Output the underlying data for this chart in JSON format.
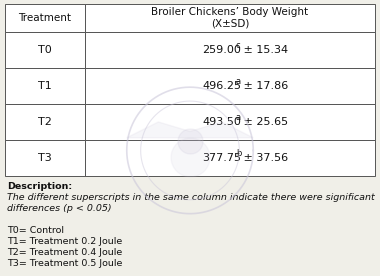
{
  "title_col1": "Treatment",
  "title_col2_line1": "Broiler Chickens’ Body Weight",
  "title_col2_line2": "(X±SD)",
  "rows": [
    {
      "treatment": "T0",
      "value": "259.00",
      "superscript": "c",
      "sd": "± 15.34"
    },
    {
      "treatment": "T1",
      "value": "496.25",
      "superscript": "a",
      "sd": "± 17.86"
    },
    {
      "treatment": "T2",
      "value": "493.50",
      "superscript": "a",
      "sd": "± 25.65"
    },
    {
      "treatment": "T3",
      "value": "377.75",
      "superscript": "b",
      "sd": "± 37.56"
    }
  ],
  "description_lines": [
    "Description:",
    "The different superscripts in the same column indicate there were significant",
    "differences (p < 0.05)",
    "",
    "T0= Control",
    "T1= Treatment 0.2 Joule",
    "T2= Treatment 0.4 Joule",
    "T3= Treatment 0.5 Joule"
  ],
  "bg_color": "#f0efe8",
  "border_color": "#555555",
  "text_color": "#111111",
  "watermark_color": "#c8c4d8",
  "font_size_header": 7.5,
  "font_size_cell": 8,
  "font_size_desc": 6.8
}
